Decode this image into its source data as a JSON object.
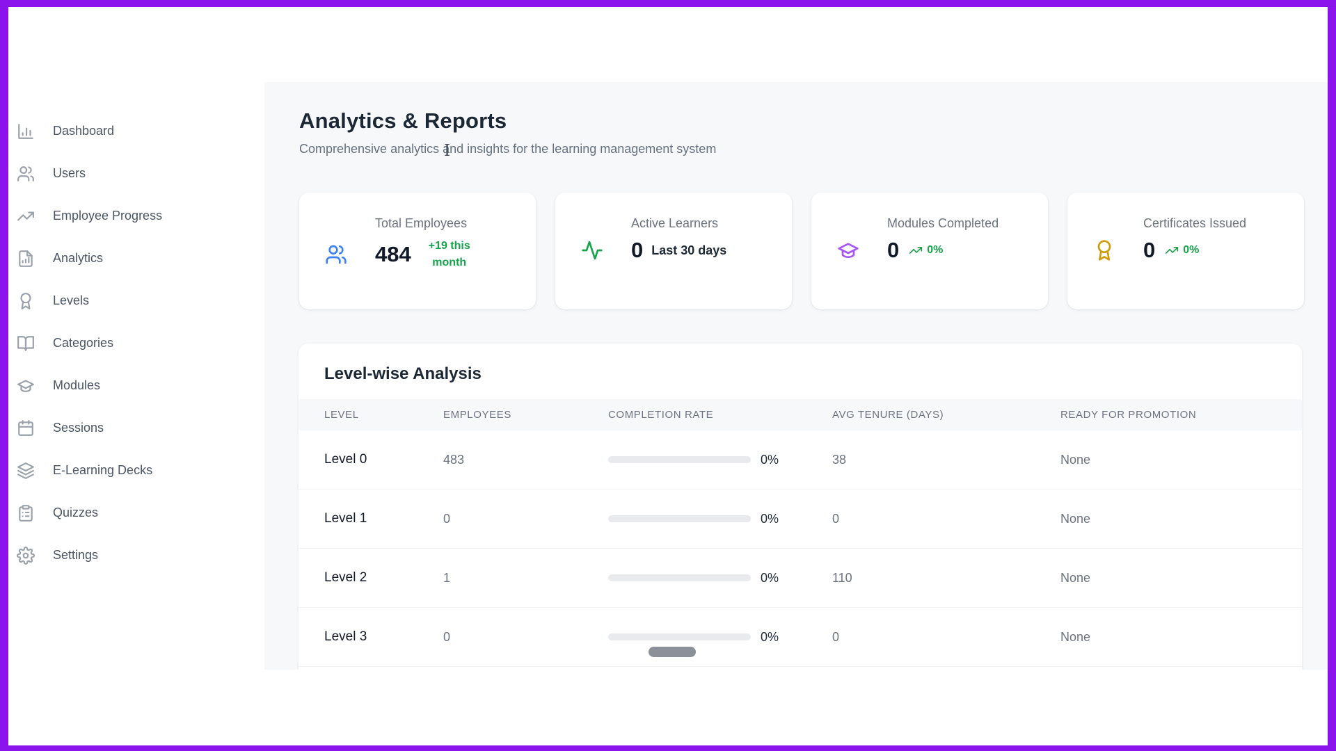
{
  "colors": {
    "frame": "#8b14ec",
    "green": "#16a34a",
    "blue": "#3b82f6",
    "purple": "#a855f7",
    "amber": "#cf9b0a"
  },
  "sidebar": {
    "items": [
      {
        "label": "Dashboard",
        "icon": "bar-chart"
      },
      {
        "label": "Users",
        "icon": "users"
      },
      {
        "label": "Employee Progress",
        "icon": "trending-up"
      },
      {
        "label": "Analytics",
        "icon": "file-chart"
      },
      {
        "label": "Levels",
        "icon": "award"
      },
      {
        "label": "Categories",
        "icon": "book-open"
      },
      {
        "label": "Modules",
        "icon": "graduation-cap"
      },
      {
        "label": "Sessions",
        "icon": "calendar"
      },
      {
        "label": "E-Learning Decks",
        "icon": "layers"
      },
      {
        "label": "Quizzes",
        "icon": "clipboard-list"
      },
      {
        "label": "Settings",
        "icon": "settings"
      }
    ]
  },
  "header": {
    "title": "Analytics & Reports",
    "subtitle": "Comprehensive analytics and insights for the learning management system"
  },
  "stats": [
    {
      "label": "Total Employees",
      "value": "484",
      "delta": "+19 this month",
      "delta_style": "green",
      "icon": "users",
      "icon_color": "#3b82f6"
    },
    {
      "label": "Active Learners",
      "value": "0",
      "delta": "Last 30 days",
      "delta_style": "dark",
      "icon": "activity",
      "icon_color": "#16a34a"
    },
    {
      "label": "Modules Completed",
      "value": "0",
      "delta": "0%",
      "delta_style": "trend",
      "icon": "graduation-cap",
      "icon_color": "#a855f7"
    },
    {
      "label": "Certificates Issued",
      "value": "0",
      "delta": "0%",
      "delta_style": "trend",
      "icon": "award",
      "icon_color": "#cf9b0a"
    }
  ],
  "table": {
    "title": "Level-wise Analysis",
    "columns": [
      "LEVEL",
      "EMPLOYEES",
      "COMPLETION RATE",
      "AVG TENURE (DAYS)",
      "READY FOR PROMOTION"
    ],
    "rows": [
      {
        "level": "Level 0",
        "employees": "483",
        "completion_pct_label": "0%",
        "completion_pct_value": 0,
        "avg_tenure": "38",
        "ready": "None"
      },
      {
        "level": "Level 1",
        "employees": "0",
        "completion_pct_label": "0%",
        "completion_pct_value": 0,
        "avg_tenure": "0",
        "ready": "None"
      },
      {
        "level": "Level 2",
        "employees": "1",
        "completion_pct_label": "0%",
        "completion_pct_value": 0,
        "avg_tenure": "110",
        "ready": "None"
      },
      {
        "level": "Level 3",
        "employees": "0",
        "completion_pct_label": "0%",
        "completion_pct_value": 0,
        "avg_tenure": "0",
        "ready": "None"
      }
    ]
  }
}
